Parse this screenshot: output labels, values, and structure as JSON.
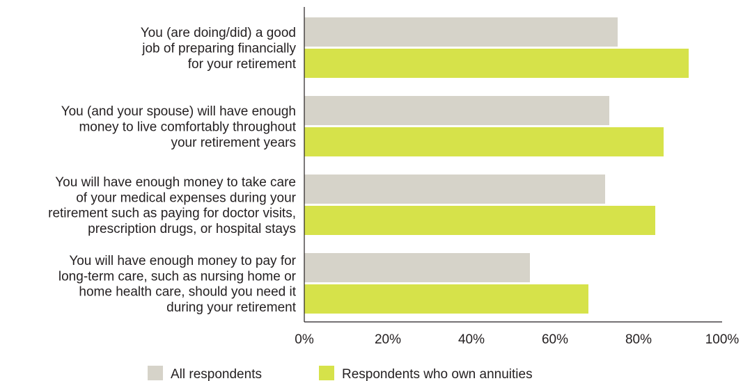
{
  "chart_data": {
    "type": "bar",
    "orientation": "horizontal",
    "categories": [
      [
        "You (are doing/did) a good",
        "job of preparing financially",
        "for your retirement"
      ],
      [
        "You (and your spouse) will have enough",
        "money to live comfortably throughout",
        "your retirement years"
      ],
      [
        "You will have enough money to take care",
        "of your medical expenses during your",
        "retirement such as paying for doctor visits,",
        "prescription drugs, or hospital stays"
      ],
      [
        "You will have enough money to pay for",
        "long-term care, such as nursing home or",
        "home health care, should you need it",
        "during your retirement"
      ]
    ],
    "series": [
      {
        "name": "All respondents",
        "color": "#d6d3c9",
        "values": [
          75,
          73,
          72,
          54
        ]
      },
      {
        "name": "Respondents who own annuities",
        "color": "#d6e24a",
        "values": [
          92,
          86,
          84,
          68
        ]
      }
    ],
    "xlim": [
      0,
      100
    ],
    "x_ticks": [
      "0%",
      "20%",
      "40%",
      "60%",
      "80%",
      "100%"
    ],
    "grid": false,
    "legend": "bottom"
  }
}
